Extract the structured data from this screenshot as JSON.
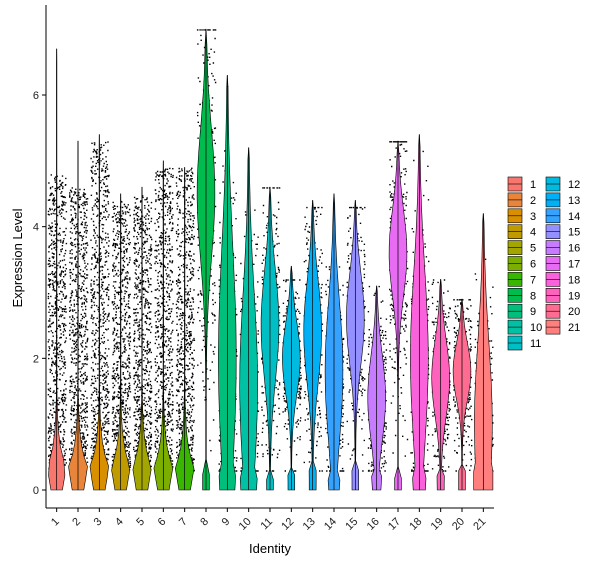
{
  "chart_data": {
    "type": "violin",
    "xlabel": "Identity",
    "ylabel": "Expression Level",
    "yticks": [
      0,
      2,
      4,
      6
    ],
    "ylim": [
      -0.2,
      7.3
    ],
    "grid": false,
    "legend_position": "right",
    "points_overlay": true,
    "point_color": "#000000",
    "categories": [
      "1",
      "2",
      "3",
      "4",
      "5",
      "6",
      "7",
      "8",
      "9",
      "10",
      "11",
      "12",
      "13",
      "14",
      "15",
      "16",
      "17",
      "18",
      "19",
      "20",
      "21"
    ],
    "colors": [
      "#F8766D",
      "#E8853A",
      "#D89000",
      "#C09B00",
      "#A3A500",
      "#7CAE00",
      "#39B600",
      "#00BB4E",
      "#00BF7D",
      "#00C1A3",
      "#00BFC4",
      "#00BAE0",
      "#00B0F6",
      "#35A2FF",
      "#9590FF",
      "#C77CFF",
      "#E76BF3",
      "#FA62DB",
      "#FF62BC",
      "#FF6C91",
      "#FF7F7F"
    ],
    "series": [
      {
        "name": "1",
        "max": 6.7,
        "median": 0.3,
        "point_top": 4.8
      },
      {
        "name": "2",
        "max": 5.3,
        "median": 0.3,
        "point_top": 4.6
      },
      {
        "name": "3",
        "max": 5.4,
        "median": 0.3,
        "point_top": 5.3
      },
      {
        "name": "4",
        "max": 4.5,
        "median": 0.3,
        "point_top": 4.4
      },
      {
        "name": "5",
        "max": 4.6,
        "median": 0.3,
        "point_top": 4.5
      },
      {
        "name": "6",
        "max": 5.0,
        "median": 0.3,
        "point_top": 4.9
      },
      {
        "name": "7",
        "max": 4.9,
        "median": 0.3,
        "point_top": 4.9
      },
      {
        "name": "8",
        "max": 7.0,
        "median": 4.5,
        "point_top": 7.0
      },
      {
        "name": "9",
        "max": 6.3,
        "median": 2.0,
        "point_top": 6.3
      },
      {
        "name": "10",
        "max": 5.2,
        "median": 1.6,
        "point_top": 5.0
      },
      {
        "name": "11",
        "max": 4.6,
        "median": 2.5,
        "point_top": 4.6
      },
      {
        "name": "12",
        "max": 3.4,
        "median": 2.0,
        "point_top": 3.2
      },
      {
        "name": "13",
        "max": 4.4,
        "median": 2.4,
        "point_top": 4.3
      },
      {
        "name": "14",
        "max": 4.5,
        "median": 1.8,
        "point_top": 3.4
      },
      {
        "name": "15",
        "max": 4.4,
        "median": 2.6,
        "point_top": 4.3
      },
      {
        "name": "16",
        "max": 3.1,
        "median": 1.4,
        "point_top": 3.1
      },
      {
        "name": "17",
        "max": 5.3,
        "median": 3.6,
        "point_top": 5.3
      },
      {
        "name": "18",
        "max": 5.4,
        "median": 2.0,
        "point_top": 5.4
      },
      {
        "name": "19",
        "max": 3.2,
        "median": 1.7,
        "point_top": 3.2
      },
      {
        "name": "20",
        "max": 2.9,
        "median": 1.8,
        "point_top": 2.9
      },
      {
        "name": "21",
        "max": 4.2,
        "median": 1.0,
        "point_top": 4.2
      }
    ]
  }
}
